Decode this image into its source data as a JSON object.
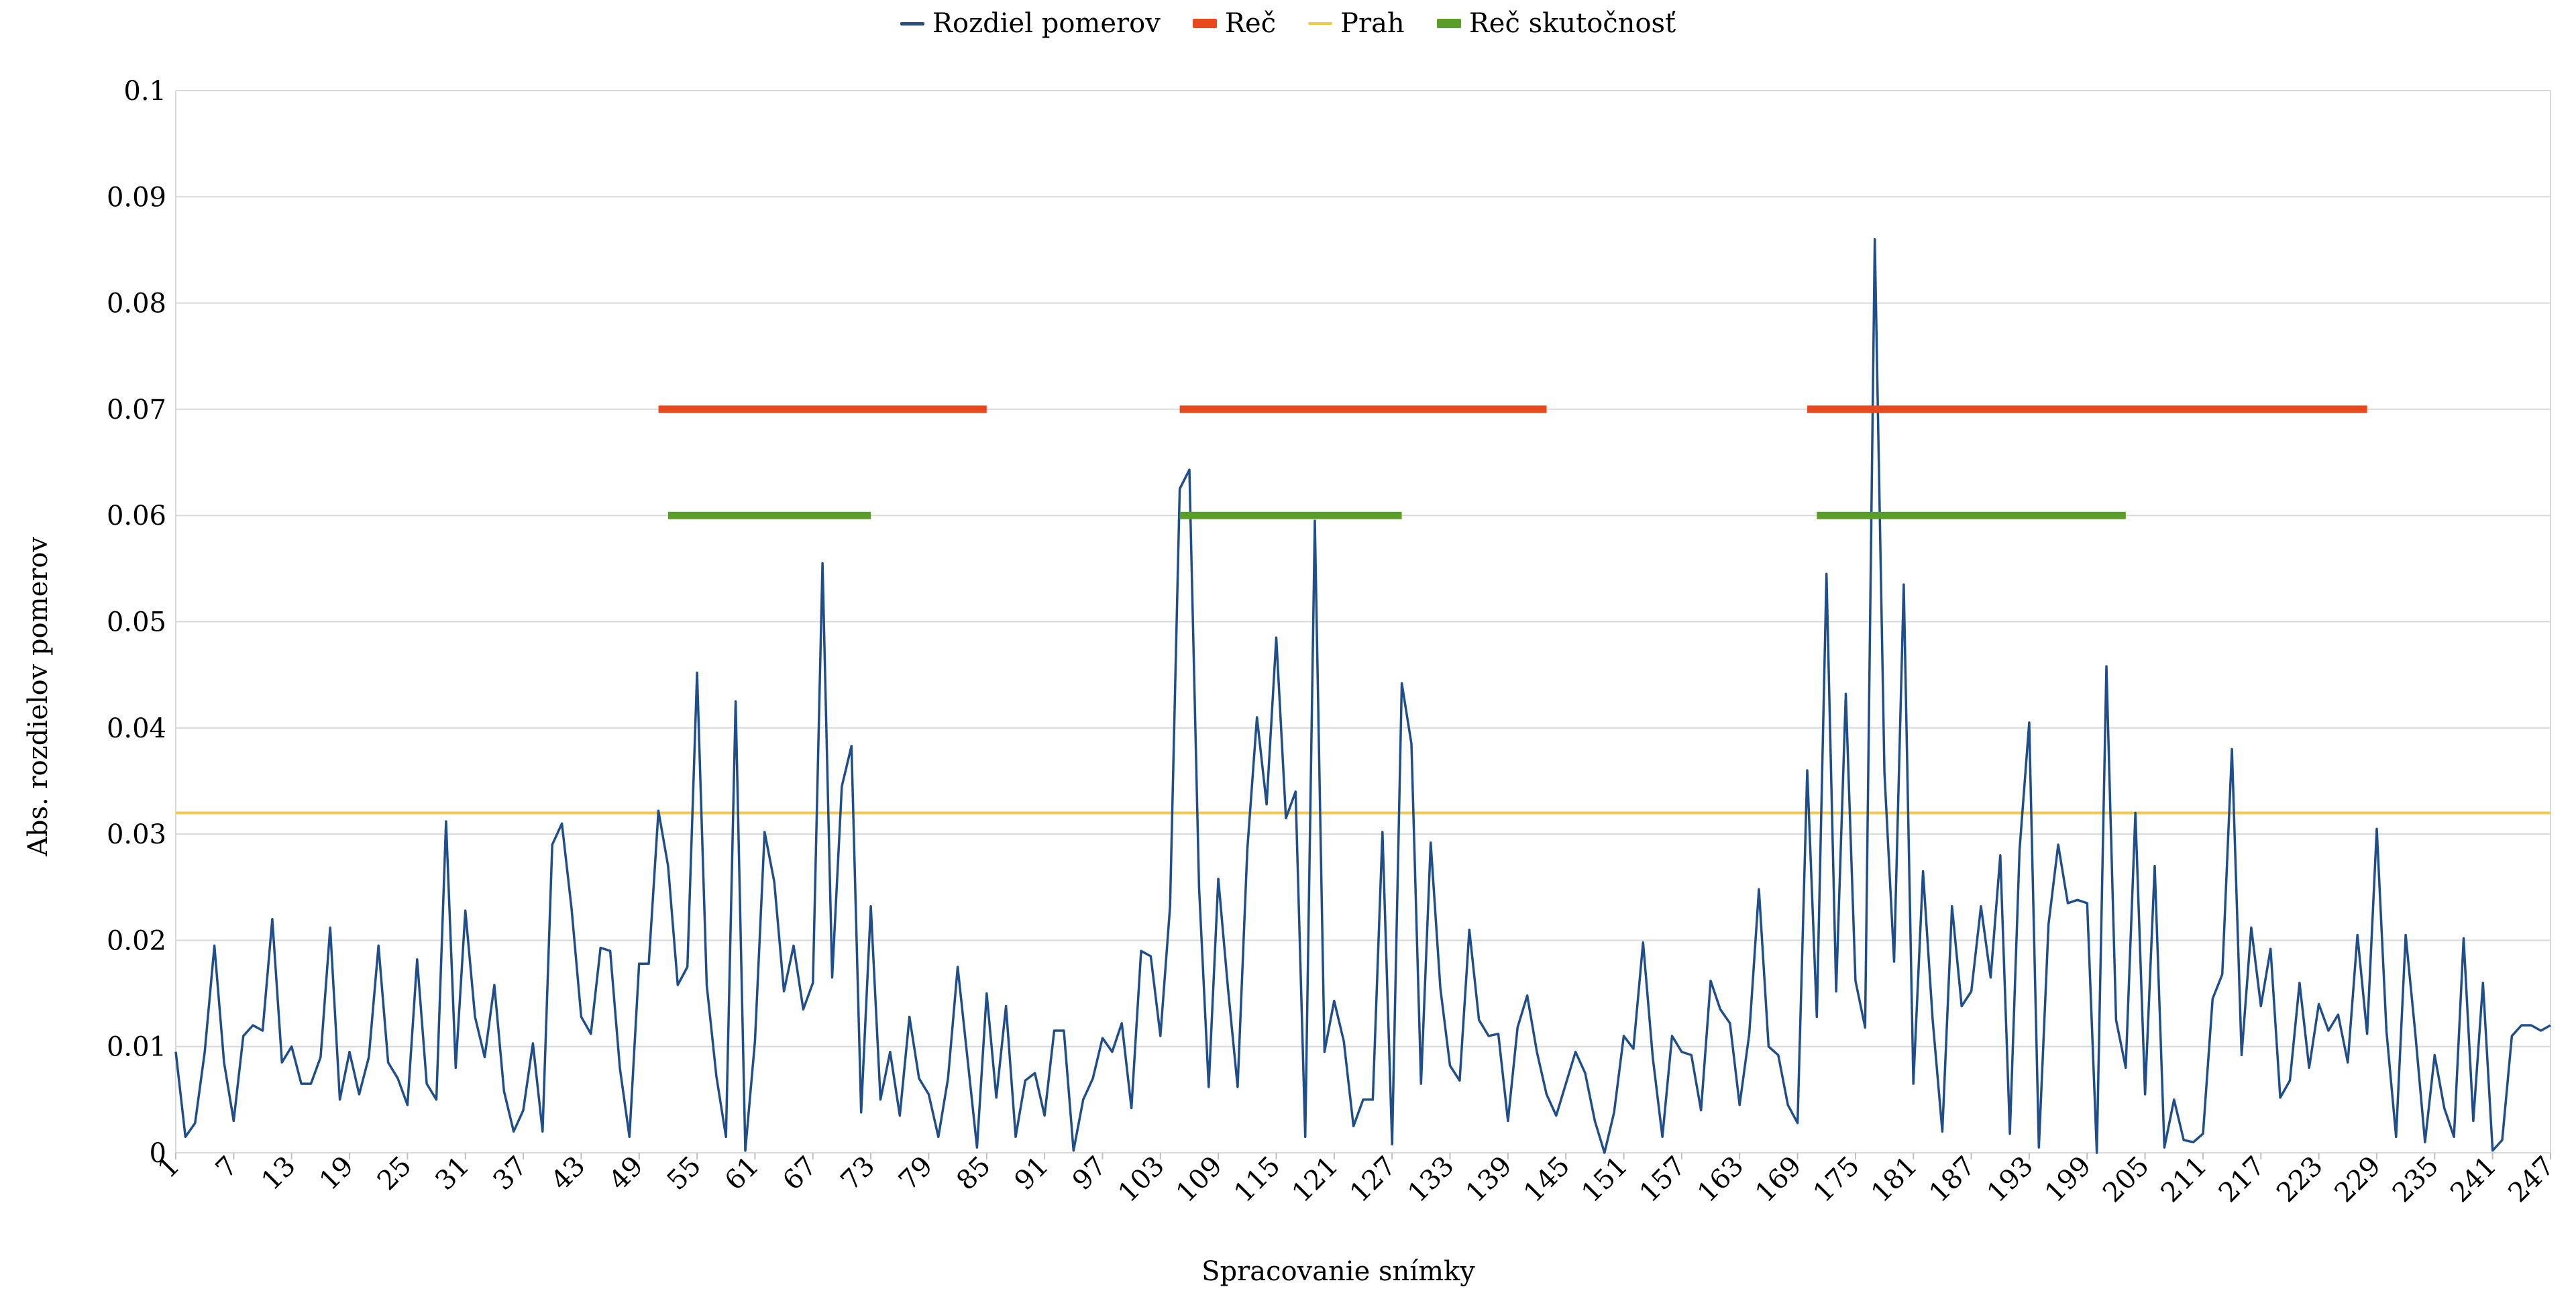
{
  "chart_data": {
    "type": "line",
    "xlabel": "Spracovanie snímky",
    "ylabel": "Abs. rozdielov pomerov",
    "xlim": [
      1,
      247
    ],
    "ylim": [
      0,
      0.1
    ],
    "y_ticks": [
      "0",
      "0.01",
      "0.02",
      "0.03",
      "0.04",
      "0.05",
      "0.06",
      "0.07",
      "0.08",
      "0.09",
      "0.1"
    ],
    "y_tick_values": [
      0,
      0.01,
      0.02,
      0.03,
      0.04,
      0.05,
      0.06,
      0.07,
      0.08,
      0.09,
      0.1
    ],
    "x_ticks": [
      1,
      7,
      13,
      19,
      25,
      31,
      37,
      43,
      49,
      55,
      61,
      67,
      73,
      79,
      85,
      91,
      97,
      103,
      109,
      115,
      121,
      127,
      133,
      139,
      145,
      151,
      157,
      163,
      169,
      175,
      181,
      187,
      193,
      199,
      205,
      211,
      217,
      223,
      229,
      235,
      241,
      247
    ],
    "grid": "horizontal",
    "legend_position": "top-center",
    "colors": {
      "rozdiel": "#1f4e8a",
      "rec": "#e8481c",
      "prah": "#f2c94c",
      "rec_skutocnost": "#5a9e2a",
      "grid": "#d9d9d9"
    },
    "legend": [
      "Rozdiel pomerov",
      "Reč",
      "Prah",
      "Reč skutočnosť"
    ],
    "series": [
      {
        "name": "Rozdiel pomerov",
        "type": "line",
        "start_x": 1,
        "values": [
          0.0095,
          0.0015,
          0.0028,
          0.0095,
          0.0195,
          0.0085,
          0.003,
          0.011,
          0.012,
          0.0115,
          0.022,
          0.0085,
          0.01,
          0.0065,
          0.0065,
          0.009,
          0.0212,
          0.005,
          0.0095,
          0.0055,
          0.009,
          0.0195,
          0.0085,
          0.007,
          0.0045,
          0.0182,
          0.0065,
          0.005,
          0.0312,
          0.008,
          0.0228,
          0.0128,
          0.009,
          0.0158,
          0.0058,
          0.002,
          0.004,
          0.0103,
          0.002,
          0.029,
          0.031,
          0.023,
          0.0128,
          0.0112,
          0.0193,
          0.019,
          0.008,
          0.0015,
          0.0178,
          0.0178,
          0.0322,
          0.027,
          0.0158,
          0.0175,
          0.0452,
          0.0158,
          0.0072,
          0.0015,
          0.0425,
          0.0002,
          0.0105,
          0.0302,
          0.0255,
          0.0152,
          0.0195,
          0.0135,
          0.016,
          0.0555,
          0.0165,
          0.0345,
          0.0383,
          0.0038,
          0.0232,
          0.005,
          0.0095,
          0.0035,
          0.0128,
          0.007,
          0.0055,
          0.0015,
          0.007,
          0.0175,
          0.009,
          0.0005,
          0.015,
          0.0052,
          0.0138,
          0.0015,
          0.0068,
          0.0075,
          0.0035,
          0.0115,
          0.0115,
          0.0002,
          0.005,
          0.007,
          0.0108,
          0.0095,
          0.0122,
          0.0042,
          0.019,
          0.0185,
          0.011,
          0.0232,
          0.0625,
          0.0643,
          0.025,
          0.0062,
          0.0258,
          0.0155,
          0.0062,
          0.0285,
          0.041,
          0.0328,
          0.0485,
          0.0315,
          0.034,
          0.0015,
          0.0595,
          0.0095,
          0.0143,
          0.0105,
          0.0025,
          0.005,
          0.005,
          0.0302,
          0.0008,
          0.0442,
          0.0385,
          0.0065,
          0.0292,
          0.0155,
          0.0082,
          0.0068,
          0.021,
          0.0125,
          0.011,
          0.0112,
          0.003,
          0.0118,
          0.0148,
          0.0095,
          0.0055,
          0.0035,
          0.0065,
          0.0095,
          0.0075,
          0.003,
          0.0,
          0.0038,
          0.011,
          0.0098,
          0.0198,
          0.009,
          0.0015,
          0.011,
          0.0095,
          0.0092,
          0.004,
          0.0162,
          0.0135,
          0.0122,
          0.0045,
          0.0112,
          0.0248,
          0.01,
          0.0092,
          0.0045,
          0.0028,
          0.036,
          0.0128,
          0.0545,
          0.0152,
          0.0432,
          0.0162,
          0.0118,
          0.086,
          0.0358,
          0.018,
          0.0535,
          0.0065,
          0.0265,
          0.0125,
          0.002,
          0.0232,
          0.0138,
          0.0152,
          0.0232,
          0.0165,
          0.028,
          0.0018,
          0.0285,
          0.0405,
          0.0005,
          0.0215,
          0.029,
          0.0235,
          0.0238,
          0.0235,
          0.0,
          0.0458,
          0.0125,
          0.008,
          0.032,
          0.0055,
          0.027,
          0.0005,
          0.005,
          0.0012,
          0.001,
          0.0018,
          0.0145,
          0.0168,
          0.038,
          0.0092,
          0.0212,
          0.0138,
          0.0192,
          0.0052,
          0.0068,
          0.016,
          0.008,
          0.014,
          0.0115,
          0.013,
          0.0085,
          0.0205,
          0.0112,
          0.0305,
          0.0115,
          0.0015,
          0.0205,
          0.0112,
          0.001,
          0.0092,
          0.0042,
          0.0015,
          0.0202,
          0.003,
          0.016,
          0.0002,
          0.0012,
          0.011,
          0.012,
          0.012,
          0.0115,
          0.012
        ]
      },
      {
        "name": "Reč",
        "type": "segments",
        "y": 0.07,
        "segments": [
          [
            51,
            85
          ],
          [
            105,
            143
          ],
          [
            170,
            228
          ]
        ]
      },
      {
        "name": "Prah",
        "type": "hline",
        "y": 0.032
      },
      {
        "name": "Reč skutočnosť",
        "type": "segments",
        "y": 0.06,
        "segments": [
          [
            52,
            73
          ],
          [
            105,
            128
          ],
          [
            171,
            203
          ]
        ]
      }
    ]
  }
}
